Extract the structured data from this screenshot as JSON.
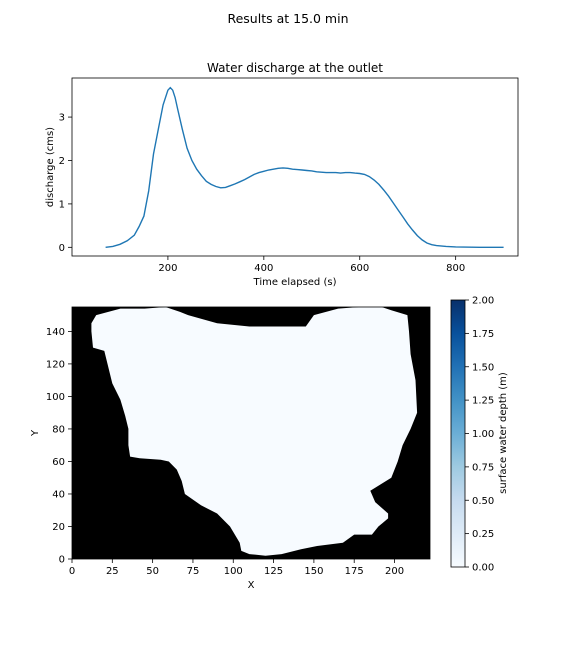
{
  "figure": {
    "suptitle": "Results at 15.0 min"
  },
  "chart_data": [
    {
      "type": "line",
      "title": "Water discharge at the outlet",
      "xlabel": "Time elapsed (s)",
      "ylabel": "discharge (cms)",
      "xlim": [
        0,
        930
      ],
      "ylim": [
        -0.2,
        3.9
      ],
      "xticks": [
        200,
        400,
        600,
        800
      ],
      "yticks": [
        0,
        1,
        2,
        3
      ],
      "grid": false,
      "series": [
        {
          "color": "#1f77b4",
          "x": [
            70,
            85,
            100,
            115,
            130,
            140,
            150,
            160,
            170,
            180,
            190,
            200,
            205,
            210,
            215,
            220,
            230,
            240,
            250,
            260,
            270,
            280,
            290,
            300,
            310,
            320,
            330,
            340,
            350,
            360,
            370,
            380,
            390,
            400,
            410,
            420,
            430,
            440,
            450,
            460,
            470,
            480,
            490,
            500,
            510,
            520,
            530,
            540,
            550,
            560,
            570,
            580,
            590,
            600,
            610,
            620,
            630,
            640,
            650,
            660,
            670,
            680,
            690,
            700,
            710,
            720,
            730,
            740,
            750,
            760,
            780,
            800,
            850,
            900
          ],
          "y": [
            0.0,
            0.02,
            0.07,
            0.15,
            0.28,
            0.48,
            0.72,
            1.3,
            2.15,
            2.72,
            3.28,
            3.62,
            3.68,
            3.62,
            3.45,
            3.2,
            2.72,
            2.28,
            2.0,
            1.8,
            1.65,
            1.52,
            1.45,
            1.4,
            1.37,
            1.38,
            1.42,
            1.46,
            1.51,
            1.56,
            1.62,
            1.68,
            1.72,
            1.75,
            1.78,
            1.8,
            1.82,
            1.83,
            1.82,
            1.8,
            1.79,
            1.78,
            1.77,
            1.76,
            1.74,
            1.73,
            1.72,
            1.72,
            1.72,
            1.71,
            1.72,
            1.72,
            1.71,
            1.7,
            1.68,
            1.63,
            1.55,
            1.45,
            1.32,
            1.18,
            1.02,
            0.86,
            0.7,
            0.54,
            0.4,
            0.27,
            0.17,
            0.1,
            0.06,
            0.04,
            0.02,
            0.01,
            0.0,
            0.0
          ]
        }
      ]
    },
    {
      "type": "heatmap",
      "xlabel": "X",
      "ylabel": "Y",
      "xlim": [
        0,
        222
      ],
      "ylim": [
        0,
        155
      ],
      "xticks": [
        0,
        25,
        50,
        75,
        100,
        125,
        150,
        175,
        200
      ],
      "yticks": [
        0,
        20,
        40,
        60,
        80,
        100,
        120,
        140
      ],
      "colormap": "Blues",
      "outside_color": "#000000",
      "domain_color": "#f7fbff",
      "domain_boundary": [
        [
          12,
          145
        ],
        [
          15,
          150
        ],
        [
          30,
          154
        ],
        [
          45,
          154
        ],
        [
          58,
          155
        ],
        [
          67,
          152
        ],
        [
          72,
          150
        ],
        [
          90,
          145
        ],
        [
          110,
          143
        ],
        [
          130,
          143
        ],
        [
          145,
          143
        ],
        [
          150,
          150
        ],
        [
          165,
          154
        ],
        [
          178,
          155
        ],
        [
          192,
          155
        ],
        [
          198,
          153
        ],
        [
          208,
          150
        ],
        [
          209,
          140
        ],
        [
          210,
          126
        ],
        [
          213,
          110
        ],
        [
          214,
          90
        ],
        [
          210,
          80
        ],
        [
          205,
          70
        ],
        [
          202,
          60
        ],
        [
          198,
          50
        ],
        [
          190,
          45
        ],
        [
          185,
          42
        ],
        [
          188,
          35
        ],
        [
          196,
          28
        ],
        [
          196,
          25
        ],
        [
          190,
          20
        ],
        [
          186,
          15
        ],
        [
          175,
          15
        ],
        [
          168,
          10
        ],
        [
          152,
          8
        ],
        [
          142,
          6
        ],
        [
          130,
          3
        ],
        [
          120,
          2
        ],
        [
          110,
          3
        ],
        [
          105,
          5
        ],
        [
          104,
          10
        ],
        [
          98,
          20
        ],
        [
          90,
          28
        ],
        [
          80,
          33
        ],
        [
          70,
          40
        ],
        [
          68,
          48
        ],
        [
          65,
          55
        ],
        [
          60,
          60
        ],
        [
          55,
          61
        ],
        [
          42,
          62
        ],
        [
          36,
          63
        ],
        [
          35,
          70
        ],
        [
          35,
          80
        ],
        [
          33,
          88
        ],
        [
          30,
          98
        ],
        [
          25,
          108
        ],
        [
          22,
          120
        ],
        [
          20,
          128
        ],
        [
          13,
          130
        ],
        [
          12,
          140
        ]
      ],
      "colorbar": {
        "label": "surface water depth (m)",
        "min": 0.0,
        "max": 2.0,
        "ticks": [
          "0.00",
          "0.25",
          "0.50",
          "0.75",
          "1.00",
          "1.25",
          "1.50",
          "1.75",
          "2.00"
        ]
      }
    }
  ]
}
